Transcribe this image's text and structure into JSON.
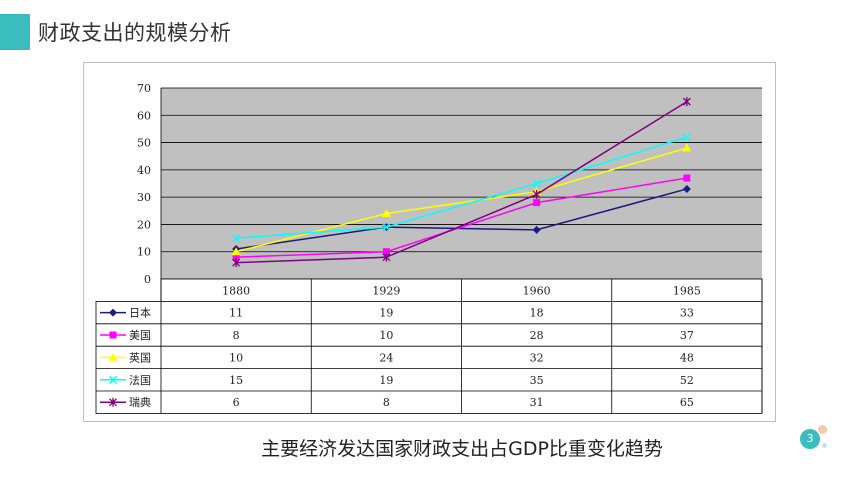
{
  "slide": {
    "title": "财政支出的规模分析",
    "caption": "主要经济发达国家财政支出占GDP比重变化趋势",
    "page_number": "3"
  },
  "colors": {
    "accent": "#3bbdbd",
    "plot_bg": "#c0c0c0"
  },
  "chart_data": {
    "type": "line",
    "title": "",
    "xlabel": "",
    "ylabel": "",
    "categories": [
      "1880",
      "1929",
      "1960",
      "1985"
    ],
    "ylim": [
      0,
      70
    ],
    "yticks": [
      "0",
      "10",
      "20",
      "30",
      "40",
      "50",
      "60",
      "70"
    ],
    "grid": true,
    "legend": "data-table",
    "series": [
      {
        "name": "日本",
        "values": [
          11,
          19,
          18,
          33
        ],
        "color": "#1a1a80",
        "marker": "diamond"
      },
      {
        "name": "美国",
        "values": [
          8,
          10,
          28,
          37
        ],
        "color": "#ff00ff",
        "marker": "square"
      },
      {
        "name": "英国",
        "values": [
          10,
          24,
          32,
          48
        ],
        "color": "#ffff00",
        "marker": "triangle"
      },
      {
        "name": "法国",
        "values": [
          15,
          19,
          35,
          52
        ],
        "color": "#00ffff",
        "marker": "x"
      },
      {
        "name": "瑞典",
        "values": [
          6,
          8,
          31,
          65
        ],
        "color": "#800080",
        "marker": "asterisk"
      }
    ]
  }
}
